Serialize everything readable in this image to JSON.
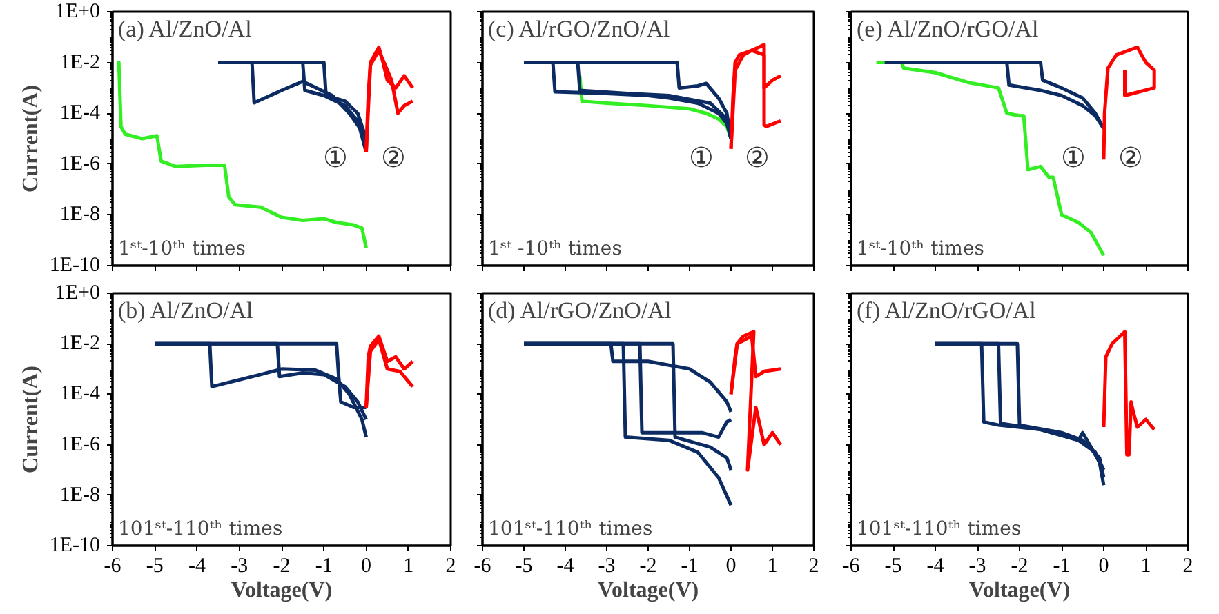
{
  "chart_data": [
    {
      "type": "line",
      "title": "(a) Al/ZnO/Al",
      "ylabel": "Current(A)",
      "log": "y",
      "tick_labels": "y",
      "xlim": [
        -6,
        2
      ],
      "xticks": [
        {
          "value": -6,
          "label": null
        },
        {
          "value": -5,
          "label": null
        },
        {
          "value": -4,
          "label": null
        },
        {
          "value": -3,
          "label": null
        },
        {
          "value": -2,
          "label": null
        },
        {
          "value": -1,
          "label": null
        },
        {
          "value": 0,
          "label": null
        },
        {
          "value": 1,
          "label": null
        },
        {
          "value": 2,
          "label": null
        }
      ],
      "ylim": [
        1e-10,
        1
      ],
      "yticks": [
        {
          "value": 1,
          "label": "1E+0"
        },
        {
          "value": 0.01,
          "label": "1E-2"
        },
        {
          "value": 0.0001,
          "label": "1E-4"
        },
        {
          "value": 1e-06,
          "label": "1E-6"
        },
        {
          "value": 1e-08,
          "label": "1E-8"
        },
        {
          "value": 1e-10,
          "label": "1E-10"
        }
      ],
      "annotations": [
        "1ˢᵗ-10ᵗʰ times",
        "①",
        "②"
      ],
      "series": [
        {
          "color": "#33ee22",
          "x": [
            -5.9,
            -5.85,
            -5.8,
            -5.7,
            -5.3,
            -4.95,
            -4.85,
            -4.5,
            -3.8,
            -3.35,
            -3.25,
            -3.1,
            -2.5,
            -2,
            -1.5,
            -1,
            -0.7,
            -0.3,
            -0.1,
            0
          ],
          "values": [
            0.01,
            0.01,
            3e-05,
            1.5e-05,
            1e-05,
            1.3e-05,
            1.3e-06,
            8e-07,
            9e-07,
            9e-07,
            5e-08,
            2.5e-08,
            2e-08,
            8e-09,
            6e-09,
            7e-09,
            5e-09,
            4e-09,
            3e-09,
            5e-10
          ]
        },
        {
          "color": "#0d2b63",
          "x": [
            -3.5,
            -2.7,
            -2.65,
            -2,
            -1.5,
            -1.4,
            -0.8,
            -0.4,
            -0.1,
            0
          ],
          "values": [
            0.01,
            0.01,
            0.00026,
            0.0008,
            0.0018,
            0.0015,
            0.0005,
            0.0001,
            2e-05,
            3e-06
          ]
        },
        {
          "color": "#0d2b63",
          "x": [
            -3.5,
            -1.5,
            -1.45,
            -1,
            -0.5,
            -0.2,
            0
          ],
          "values": [
            0.01,
            0.01,
            0.0008,
            0.0005,
            0.0002,
            5e-05,
            3e-06
          ]
        },
        {
          "color": "#0d2b63",
          "x": [
            -3.5,
            -1.0,
            -0.95,
            -0.5,
            -0.2,
            0
          ],
          "values": [
            0.01,
            0.01,
            0.0005,
            0.0003,
            0.0001,
            1e-05
          ]
        },
        {
          "color": "#ff0000",
          "x": [
            0,
            0.05,
            0.1,
            0.2,
            0.3,
            0.4,
            0.5,
            0.7,
            0.9,
            1.1
          ],
          "values": [
            3e-06,
            0.0005,
            0.01,
            0.02,
            0.04,
            0.01,
            0.002,
            0.001,
            0.003,
            0.001
          ]
        },
        {
          "color": "#ff0000",
          "x": [
            0,
            0.1,
            0.3,
            0.5,
            0.6,
            0.75,
            0.9,
            1.1
          ],
          "values": [
            3e-06,
            0.008,
            0.03,
            0.005,
            0.002,
            0.0001,
            0.0002,
            0.0003
          ]
        }
      ]
    },
    {
      "type": "line",
      "title": "(c) Al/rGO/ZnO/Al",
      "log": "y",
      "tick_labels": false,
      "xlim": [
        -6,
        2
      ],
      "xticks": [
        {
          "value": -6,
          "label": null
        },
        {
          "value": -5,
          "label": null
        },
        {
          "value": -4,
          "label": null
        },
        {
          "value": -3,
          "label": null
        },
        {
          "value": -2,
          "label": null
        },
        {
          "value": -1,
          "label": null
        },
        {
          "value": 0,
          "label": null
        },
        {
          "value": 1,
          "label": null
        },
        {
          "value": 2,
          "label": null
        }
      ],
      "ylim": [
        1e-10,
        1
      ],
      "yticks": [
        {
          "value": 1,
          "label": null
        },
        {
          "value": 0.01,
          "label": null
        },
        {
          "value": 0.0001,
          "label": null
        },
        {
          "value": 1e-06,
          "label": null
        },
        {
          "value": 1e-08,
          "label": null
        },
        {
          "value": 1e-10,
          "label": null
        }
      ],
      "annotations": [
        "1ˢᵗ -10ᵗʰ  times",
        "①",
        "②"
      ],
      "series": [
        {
          "color": "#33ee22",
          "x": [
            -3.65,
            -3.6,
            -3,
            -2,
            -1,
            -0.6,
            -0.3,
            -0.1,
            0
          ],
          "values": [
            0.003,
            0.0003,
            0.00025,
            0.0002,
            0.00015,
            0.0001,
            6e-05,
            3e-05,
            1e-05
          ]
        },
        {
          "color": "#0d2b63",
          "x": [
            -5,
            -4.3,
            -4.25,
            -3,
            -2,
            -1.5,
            -0.8,
            -0.3,
            -0.1,
            0
          ],
          "values": [
            0.01,
            0.01,
            0.0007,
            0.0006,
            0.0005,
            0.0004,
            0.00025,
            0.0001,
            4e-05,
            1e-05
          ]
        },
        {
          "color": "#0d2b63",
          "x": [
            -5,
            -1.3,
            -1.25,
            -0.8,
            -0.6,
            -0.3,
            -0.1,
            0
          ],
          "values": [
            0.01,
            0.01,
            0.001,
            0.0012,
            0.0015,
            0.0004,
            0.0001,
            1e-05
          ]
        },
        {
          "color": "#0d2b63",
          "x": [
            -5,
            -3.7,
            -3.65,
            -2.5,
            -1.5,
            -0.5,
            -0.1,
            0
          ],
          "values": [
            0.01,
            0.01,
            0.0008,
            0.0006,
            0.0005,
            0.00025,
            6e-05,
            1e-05
          ]
        },
        {
          "color": "#ff0000",
          "x": [
            0,
            0.05,
            0.1,
            0.2,
            0.5,
            0.8,
            0.8,
            0.85,
            1.2
          ],
          "values": [
            4e-06,
            0.0005,
            0.01,
            0.02,
            0.03,
            0.05,
            3.5e-05,
            3e-05,
            5e-05
          ]
        },
        {
          "color": "#ff0000",
          "x": [
            0,
            0.1,
            0.3,
            0.5,
            0.8,
            0.8,
            1.0,
            1.2
          ],
          "values": [
            4e-06,
            0.005,
            0.02,
            0.03,
            0.02,
            0.001,
            0.002,
            0.003
          ]
        }
      ]
    },
    {
      "type": "line",
      "title": "(e) Al/ZnO/rGO/Al",
      "log": "y",
      "tick_labels": false,
      "xlim": [
        -6,
        2
      ],
      "xticks": [
        {
          "value": -6,
          "label": null
        },
        {
          "value": -5,
          "label": null
        },
        {
          "value": -4,
          "label": null
        },
        {
          "value": -3,
          "label": null
        },
        {
          "value": -2,
          "label": null
        },
        {
          "value": -1,
          "label": null
        },
        {
          "value": 0,
          "label": null
        },
        {
          "value": 1,
          "label": null
        },
        {
          "value": 2,
          "label": null
        }
      ],
      "ylim": [
        1e-10,
        1
      ],
      "yticks": [
        {
          "value": 1,
          "label": null
        },
        {
          "value": 0.01,
          "label": null
        },
        {
          "value": 0.0001,
          "label": null
        },
        {
          "value": 1e-06,
          "label": null
        },
        {
          "value": 1e-08,
          "label": null
        },
        {
          "value": 1e-10,
          "label": null
        }
      ],
      "annotations": [
        "1ˢᵗ-10ᵗʰ times",
        "①",
        "②"
      ],
      "series": [
        {
          "color": "#33ee22",
          "x": [
            -5.4,
            -4.8,
            -4.75,
            -4,
            -3.2,
            -2.5,
            -2.3,
            -2.0,
            -1.9,
            -1.8,
            -1.5,
            -1.3,
            -1.2,
            -1.0,
            -0.6,
            -0.3,
            0
          ],
          "values": [
            0.01,
            0.01,
            0.006,
            0.004,
            0.0016,
            0.001,
            0.0001,
            8e-05,
            8e-05,
            6e-07,
            8e-07,
            3e-07,
            3e-07,
            1e-08,
            5e-09,
            2e-09,
            2.5e-10
          ]
        },
        {
          "color": "#0d2b63",
          "x": [
            -5.2,
            -2.3,
            -2.25,
            -1.5,
            -1.0,
            -0.5,
            -0.2,
            0
          ],
          "values": [
            0.01,
            0.01,
            0.0013,
            0.0008,
            0.0005,
            0.0002,
            8e-05,
            2.5e-05
          ]
        },
        {
          "color": "#0d2b63",
          "x": [
            -5.2,
            -1.5,
            -1.45,
            -1.0,
            -0.5,
            -0.2,
            0
          ],
          "values": [
            0.01,
            0.01,
            0.002,
            0.001,
            0.0004,
            0.0001,
            2.5e-05
          ]
        },
        {
          "color": "#ff0000",
          "x": [
            0,
            0.02,
            0.1,
            0.3,
            0.8,
            1.0,
            1.2,
            1.2,
            0.5,
            0.5
          ],
          "values": [
            1.5e-06,
            0.0001,
            0.006,
            0.02,
            0.04,
            0.01,
            0.005,
            0.001,
            0.0005,
            0.005
          ]
        }
      ]
    },
    {
      "type": "line",
      "title": "(b) Al/ZnO/Al",
      "xlabel": "Voltage(V)",
      "ylabel": "Current(A)",
      "log": "y",
      "xlim": [
        -6,
        2
      ],
      "xticks": [
        -6,
        -5,
        -4,
        -3,
        -2,
        -1,
        0,
        1,
        2
      ],
      "ylim": [
        1e-10,
        1
      ],
      "yticks": [
        {
          "value": 1,
          "label": "1E+0"
        },
        {
          "value": 0.01,
          "label": "1E-2"
        },
        {
          "value": 0.0001,
          "label": "1E-4"
        },
        {
          "value": 1e-06,
          "label": "1E-6"
        },
        {
          "value": 1e-08,
          "label": "1E-8"
        },
        {
          "value": 1e-10,
          "label": "1E-10"
        }
      ],
      "annotations": [
        "101ˢᵗ-110ᵗʰ times"
      ],
      "series": [
        {
          "color": "#0d2b63",
          "x": [
            -5,
            -3.7,
            -3.65,
            -2.5,
            -2,
            -1.2,
            -0.7,
            -0.4,
            -0.1,
            0
          ],
          "values": [
            0.01,
            0.01,
            0.0002,
            0.0006,
            0.001,
            0.0009,
            0.0004,
            0.0001,
            1e-05,
            2e-06
          ]
        },
        {
          "color": "#0d2b63",
          "x": [
            -5,
            -2.1,
            -2.05,
            -1.5,
            -1,
            -0.5,
            -0.2,
            0
          ],
          "values": [
            0.01,
            0.01,
            0.0005,
            0.0007,
            0.0006,
            0.0002,
            5e-05,
            1e-05
          ]
        },
        {
          "color": "#0d2b63",
          "x": [
            -5,
            -0.7,
            -0.65,
            -0.6,
            -0.3,
            0
          ],
          "values": [
            0.01,
            0.01,
            0.0005,
            5e-05,
            3e-05,
            3e-05
          ]
        },
        {
          "color": "#ff0000",
          "x": [
            0,
            0.05,
            0.1,
            0.3,
            0.5,
            0.7,
            0.9,
            1.1
          ],
          "values": [
            3e-05,
            0.003,
            0.008,
            0.02,
            0.002,
            0.003,
            0.001,
            0.002
          ]
        },
        {
          "color": "#ff0000",
          "x": [
            0,
            0.1,
            0.3,
            0.5,
            0.8,
            1.1
          ],
          "values": [
            3e-05,
            0.005,
            0.015,
            0.001,
            0.0008,
            0.0002
          ]
        }
      ]
    },
    {
      "type": "line",
      "title": "(d) Al/rGO/ZnO/Al",
      "xlabel": "Voltage(V)",
      "log": "y",
      "tick_labels": "x",
      "xlim": [
        -6,
        2
      ],
      "xticks": [
        -6,
        -5,
        -4,
        -3,
        -2,
        -1,
        0,
        1,
        2
      ],
      "ylim": [
        1e-10,
        1
      ],
      "yticks": [
        {
          "value": 1,
          "label": null
        },
        {
          "value": 0.01,
          "label": null
        },
        {
          "value": 0.0001,
          "label": null
        },
        {
          "value": 1e-06,
          "label": null
        },
        {
          "value": 1e-08,
          "label": null
        },
        {
          "value": 1e-10,
          "label": null
        }
      ],
      "annotations": [
        "101ˢᵗ-110ᵗʰ times"
      ],
      "series": [
        {
          "color": "#0d2b63",
          "x": [
            -5,
            -2.9,
            -2.85,
            -2,
            -1,
            -0.5,
            -0.1,
            0
          ],
          "values": [
            0.01,
            0.01,
            0.002,
            0.002,
            0.001,
            0.0003,
            5e-05,
            2e-05
          ]
        },
        {
          "color": "#0d2b63",
          "x": [
            -5,
            -2.6,
            -2.55,
            -1.5,
            -0.8,
            -0.3,
            0
          ],
          "values": [
            0.01,
            0.01,
            2e-06,
            1.5e-06,
            5e-07,
            5e-08,
            4e-09
          ]
        },
        {
          "color": "#0d2b63",
          "x": [
            -5,
            -2.2,
            -2.15,
            -0.7,
            -0.3,
            -0.1,
            0
          ],
          "values": [
            0.01,
            0.01,
            3e-06,
            3e-06,
            2e-06,
            8e-06,
            1e-05
          ]
        },
        {
          "color": "#0d2b63",
          "x": [
            -5,
            -1.4,
            -1.35,
            -0.5,
            -0.1,
            0
          ],
          "values": [
            0.01,
            0.01,
            2e-06,
            8e-07,
            3e-07,
            1e-07
          ]
        },
        {
          "color": "#ff0000",
          "x": [
            0,
            0.1,
            0.15,
            0.3,
            0.55,
            0.4,
            0.6,
            0.8,
            1.0,
            1.2
          ],
          "values": [
            0.0001,
            0.003,
            0.01,
            0.02,
            0.03,
            1e-07,
            3e-05,
            1e-06,
            3e-06,
            1e-06
          ]
        },
        {
          "color": "#ff0000",
          "x": [
            0,
            0.15,
            0.5,
            0.6,
            0.8,
            1.2
          ],
          "values": [
            0.0001,
            0.01,
            0.02,
            0.0005,
            0.0008,
            0.001
          ]
        }
      ]
    },
    {
      "type": "line",
      "title": "(f) Al/ZnO/rGO/Al",
      "xlabel": "Voltage(V)",
      "log": "y",
      "tick_labels": "x",
      "xlim": [
        -6,
        2
      ],
      "xticks": [
        -6,
        -5,
        -4,
        -3,
        -2,
        -1,
        0,
        1,
        2
      ],
      "ylim": [
        1e-10,
        1
      ],
      "yticks": [
        {
          "value": 1,
          "label": null
        },
        {
          "value": 0.01,
          "label": null
        },
        {
          "value": 0.0001,
          "label": null
        },
        {
          "value": 1e-06,
          "label": null
        },
        {
          "value": 1e-08,
          "label": null
        },
        {
          "value": 1e-10,
          "label": null
        }
      ],
      "annotations": [
        "101ˢᵗ-110ᵗʰ times"
      ],
      "series": [
        {
          "color": "#0d2b63",
          "x": [
            -4,
            -2.9,
            -2.85,
            -2.5,
            -1.5,
            -0.6,
            -0.5,
            -0.3,
            -0.1,
            0
          ],
          "values": [
            0.01,
            0.01,
            8e-06,
            6e-06,
            4e-06,
            1.5e-06,
            3e-06,
            8e-07,
            2e-07,
            2.5e-08
          ]
        },
        {
          "color": "#0d2b63",
          "x": [
            -4,
            -2.5,
            -2.45,
            -1.5,
            -0.6,
            -0.2,
            0
          ],
          "values": [
            0.01,
            0.01,
            7e-06,
            4e-06,
            1.5e-06,
            5e-07,
            1e-07
          ]
        },
        {
          "color": "#0d2b63",
          "x": [
            -4,
            -2.05,
            -2.0,
            -1.0,
            -0.5,
            -0.1,
            0
          ],
          "values": [
            0.01,
            0.01,
            6e-06,
            3e-06,
            1.5e-06,
            3e-07,
            5e-08
          ]
        },
        {
          "color": "#ff0000",
          "x": [
            0,
            0.05,
            0.2,
            0.5,
            0.55,
            0.6,
            0.65,
            0.7,
            0.8,
            1.0,
            1.2
          ],
          "values": [
            5e-06,
            0.003,
            0.01,
            0.03,
            4e-07,
            4e-07,
            5e-05,
            2e-05,
            5e-06,
            1e-05,
            4e-06
          ]
        }
      ]
    }
  ]
}
